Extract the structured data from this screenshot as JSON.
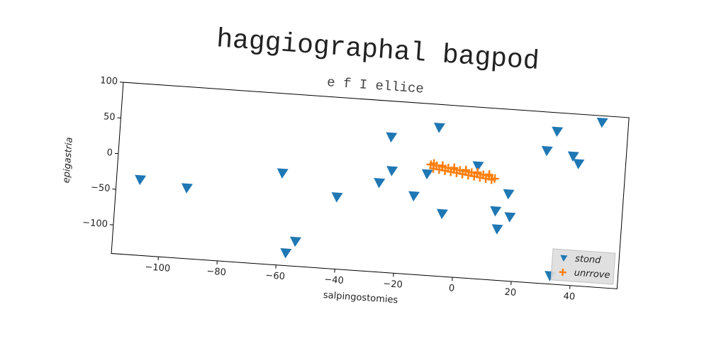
{
  "chart_data": {
    "type": "scatter",
    "title": "haggiographal bagpod",
    "subtitle": "e f I ellice",
    "xlabel": "salpingostomies",
    "ylabel": "epigastria",
    "xlim": [
      -116,
      56
    ],
    "ylim": [
      -140,
      100
    ],
    "xticks": [
      {
        "value": -100,
        "label": "−100"
      },
      {
        "value": -80,
        "label": "−80"
      },
      {
        "value": -60,
        "label": "−60"
      },
      {
        "value": -40,
        "label": "−40"
      },
      {
        "value": -20,
        "label": "−20"
      },
      0,
      20,
      40
    ],
    "yticks": [
      {
        "value": -100,
        "label": "−100"
      },
      {
        "value": -50,
        "label": "−50"
      },
      0,
      50,
      100
    ],
    "legend": "lower right",
    "series": [
      {
        "name": "stond",
        "color": "#1f77b4",
        "marker": "triangle_down",
        "x": [
          -108,
          -92,
          -60,
          -57,
          -54,
          -41,
          -27,
          -24,
          -23,
          -15,
          -11,
          -8,
          -5,
          6,
          13,
          14,
          17,
          18,
          29,
          32,
          38,
          40,
          47,
          33
        ],
        "values": [
          -35,
          -42,
          -12,
          -123,
          -106,
          -40,
          -16,
          49,
          2,
          -31,
          1,
          67,
          -53,
          17,
          -44,
          -69,
          -19,
          -51,
          45,
          73,
          40,
          30,
          90,
          -129
        ]
      },
      {
        "name": "unrrove",
        "color": "#ff7f0e",
        "marker": "plus",
        "x": [
          -10,
          -9,
          -8,
          -7,
          -6,
          -5,
          -4,
          -3,
          -2,
          -1,
          0,
          1,
          2,
          3,
          4,
          5,
          6,
          7,
          8,
          9,
          10,
          11,
          12,
          -9,
          -6,
          -2,
          2,
          6,
          10
        ],
        "values": [
          15,
          10,
          14,
          9,
          13,
          8,
          12,
          7,
          11,
          6,
          10,
          5,
          9,
          4,
          8,
          3,
          7,
          2,
          6,
          1,
          5,
          0,
          2,
          17,
          15,
          13,
          11,
          9,
          7
        ]
      }
    ]
  }
}
